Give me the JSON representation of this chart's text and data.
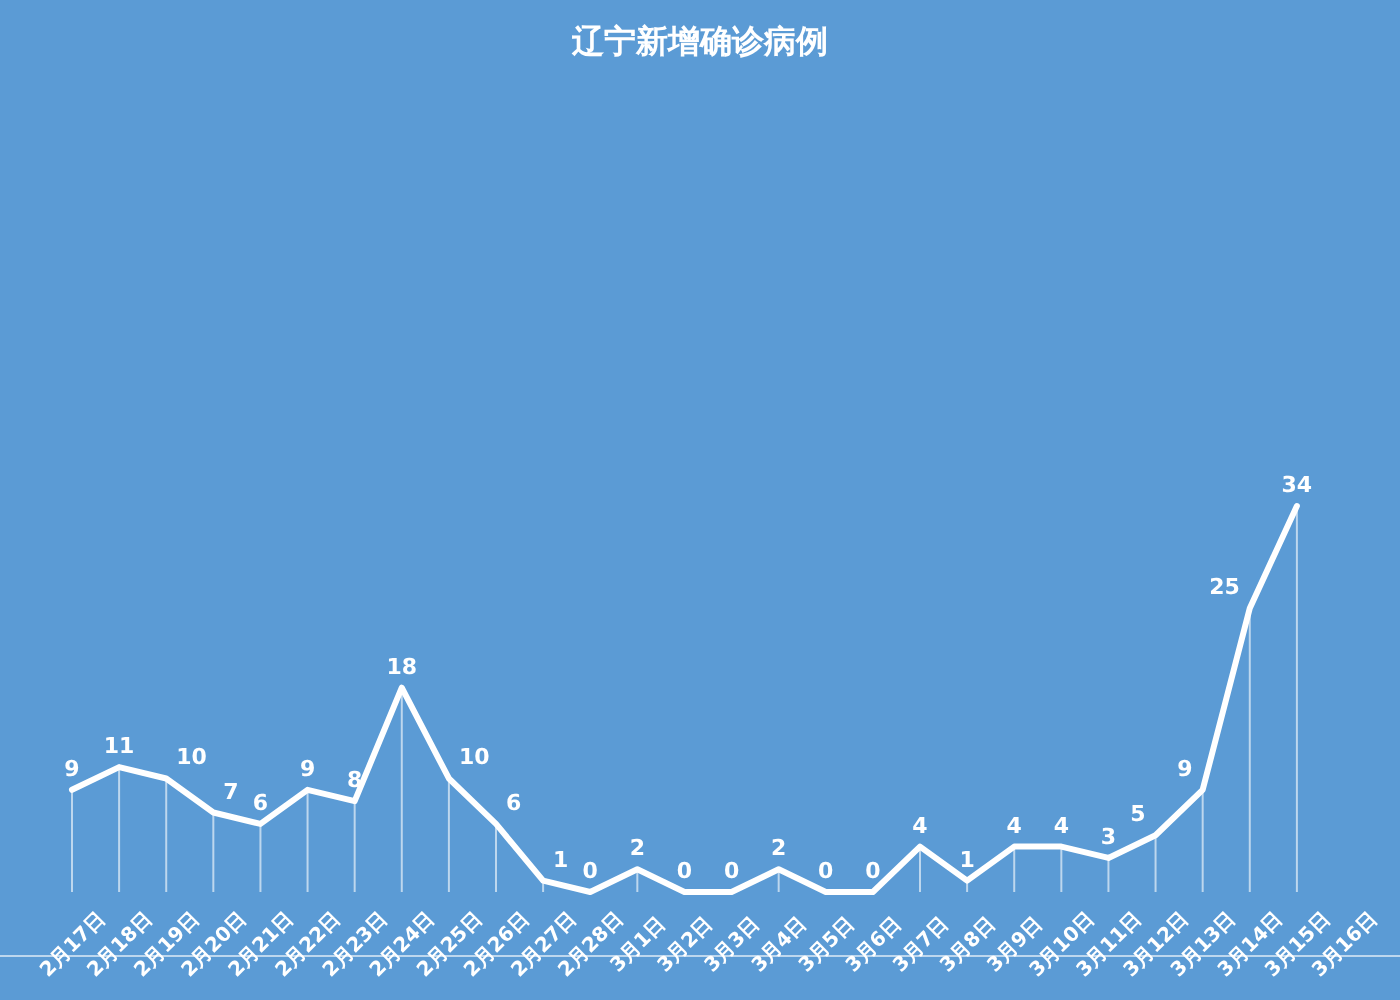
{
  "chart_data": {
    "type": "line",
    "title": "辽宁新增确诊病例",
    "categories": [
      "2月17日",
      "2月18日",
      "2月19日",
      "2月20日",
      "2月21日",
      "2月22日",
      "2月23日",
      "2月24日",
      "2月25日",
      "2月26日",
      "2月27日",
      "2月28日",
      "3月1日",
      "3月2日",
      "3月3日",
      "3月4日",
      "3月5日",
      "3月6日",
      "3月7日",
      "3月8日",
      "3月9日",
      "3月10日",
      "3月11日",
      "3月12日",
      "3月13日",
      "3月14日",
      "3月15日",
      "3月16日"
    ],
    "series": [
      {
        "color": "#ffffff",
        "values": [
          9,
          11,
          10,
          7,
          6,
          9,
          8,
          18,
          10,
          6,
          1,
          0,
          2,
          0,
          0,
          2,
          0,
          0,
          4,
          1,
          4,
          4,
          3,
          5,
          9,
          25,
          34,
          null
        ]
      }
    ],
    "data_labels": true,
    "line_style": "solid"
  }
}
